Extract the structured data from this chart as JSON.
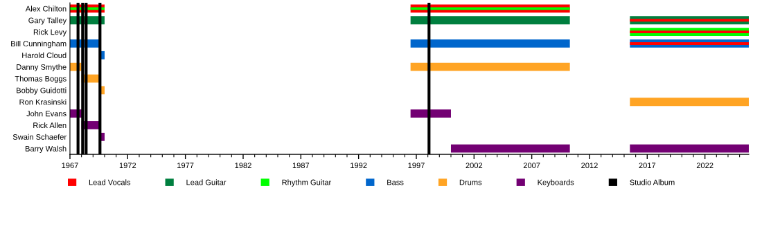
{
  "chart_data": {
    "type": "bar",
    "orientation": "horizontal",
    "legend": "bottom",
    "grid": false,
    "categories": [
      "Alex Chilton",
      "Gary Talley",
      "Rick Levy",
      "Bill Cunningham",
      "Harold Cloud",
      "Danny Smythe",
      "Thomas Boggs",
      "Bobby Guidotti",
      "Ron Krasinski",
      "John Evans",
      "Rick Allen",
      "Swain Schaefer",
      "Barry Walsh"
    ],
    "xlim": [
      1967,
      2025.8
    ],
    "xticks": [
      1967,
      {
        "value": 1968,
        "label": null
      },
      {
        "value": 1969,
        "label": null
      },
      {
        "value": 1970,
        "label": null
      },
      {
        "value": 1971,
        "label": null
      },
      1972,
      {
        "value": 1973,
        "label": null
      },
      {
        "value": 1974,
        "label": null
      },
      {
        "value": 1975,
        "label": null
      },
      {
        "value": 1976,
        "label": null
      },
      1977,
      {
        "value": 1978,
        "label": null
      },
      {
        "value": 1979,
        "label": null
      },
      {
        "value": 1980,
        "label": null
      },
      {
        "value": 1981,
        "label": null
      },
      1982,
      {
        "value": 1983,
        "label": null
      },
      {
        "value": 1984,
        "label": null
      },
      {
        "value": 1985,
        "label": null
      },
      {
        "value": 1986,
        "label": null
      },
      1987,
      {
        "value": 1988,
        "label": null
      },
      {
        "value": 1989,
        "label": null
      },
      {
        "value": 1990,
        "label": null
      },
      {
        "value": 1991,
        "label": null
      },
      1992,
      {
        "value": 1993,
        "label": null
      },
      {
        "value": 1994,
        "label": null
      },
      {
        "value": 1995,
        "label": null
      },
      {
        "value": 1996,
        "label": null
      },
      1997,
      {
        "value": 1998,
        "label": null
      },
      {
        "value": 1999,
        "label": null
      },
      {
        "value": 2000,
        "label": null
      },
      {
        "value": 2001,
        "label": null
      },
      2002,
      {
        "value": 2003,
        "label": null
      },
      {
        "value": 2004,
        "label": null
      },
      {
        "value": 2005,
        "label": null
      },
      {
        "value": 2006,
        "label": null
      },
      2007,
      {
        "value": 2008,
        "label": null
      },
      {
        "value": 2009,
        "label": null
      },
      {
        "value": 2010,
        "label": null
      },
      {
        "value": 2011,
        "label": null
      },
      2012,
      {
        "value": 2013,
        "label": null
      },
      {
        "value": 2014,
        "label": null
      },
      {
        "value": 2015,
        "label": null
      },
      {
        "value": 2016,
        "label": null
      },
      2017,
      {
        "value": 2018,
        "label": null
      },
      {
        "value": 2019,
        "label": null
      },
      {
        "value": 2020,
        "label": null
      },
      {
        "value": 2021,
        "label": null
      },
      2022,
      {
        "value": 2023,
        "label": null
      },
      {
        "value": 2024,
        "label": null
      },
      {
        "value": 2025,
        "label": null
      }
    ],
    "series": [
      {
        "name": "Lead Vocals",
        "color": "#ff0000",
        "base": [
          1967,
          null,
          null,
          null,
          null,
          null,
          null,
          null,
          null,
          null,
          null,
          null,
          null
        ],
        "values": [
          3.0,
          null,
          null,
          null,
          null,
          null,
          null,
          null,
          null,
          null,
          null,
          null,
          null
        ]
      },
      {
        "color": "#ff0000",
        "base": [
          1996.5,
          null,
          null,
          null,
          null,
          null,
          null,
          null,
          null,
          null,
          null,
          null,
          null
        ],
        "values": [
          13.8,
          null,
          null,
          null,
          null,
          null,
          null,
          null,
          null,
          null,
          null,
          null,
          null
        ]
      },
      {
        "name": "Lead Guitar",
        "color": "#007f3f",
        "base": [
          null,
          1967,
          null,
          null,
          null,
          null,
          null,
          null,
          null,
          null,
          null,
          null,
          null
        ],
        "values": [
          null,
          3.0,
          null,
          null,
          null,
          null,
          null,
          null,
          null,
          null,
          null,
          null,
          null
        ]
      },
      {
        "color": "#007f3f",
        "base": [
          null,
          1996.5,
          null,
          null,
          null,
          null,
          null,
          null,
          null,
          null,
          null,
          null,
          null
        ],
        "values": [
          null,
          13.8,
          null,
          null,
          null,
          null,
          null,
          null,
          null,
          null,
          null,
          null,
          null
        ]
      },
      {
        "color": "#007f3f",
        "base": [
          null,
          2015.5,
          null,
          null,
          null,
          null,
          null,
          null,
          null,
          null,
          null,
          null,
          null
        ],
        "values": [
          null,
          10.3,
          null,
          null,
          null,
          null,
          null,
          null,
          null,
          null,
          null,
          null,
          null
        ]
      },
      {
        "name": "Rhythm Guitar",
        "color": "#00ff00",
        "base": [
          1967,
          null,
          2015.5,
          null,
          null,
          null,
          null,
          null,
          null,
          null,
          null,
          null,
          null
        ],
        "values": [
          3.0,
          null,
          10.3,
          null,
          null,
          null,
          null,
          null,
          null,
          null,
          null,
          null,
          null
        ]
      },
      {
        "color": "#00ff00",
        "base": [
          1996.5,
          null,
          null,
          null,
          null,
          null,
          null,
          null,
          null,
          null,
          null,
          null,
          null
        ],
        "values": [
          13.8,
          null,
          null,
          null,
          null,
          null,
          null,
          null,
          null,
          null,
          null,
          null,
          null
        ]
      },
      {
        "name": "Bass",
        "color": "#0066cc",
        "base": [
          null,
          null,
          null,
          1967,
          1969.6,
          null,
          null,
          null,
          null,
          null,
          null,
          null,
          null
        ],
        "values": [
          null,
          null,
          null,
          2.6,
          0.4,
          null,
          null,
          null,
          null,
          null,
          null,
          null,
          null
        ]
      },
      {
        "color": "#0066cc",
        "base": [
          null,
          null,
          null,
          1996.5,
          null,
          null,
          null,
          null,
          null,
          null,
          null,
          null,
          null
        ],
        "values": [
          null,
          null,
          null,
          13.8,
          null,
          null,
          null,
          null,
          null,
          null,
          null,
          null,
          null
        ]
      },
      {
        "color": "#0066cc",
        "base": [
          null,
          null,
          null,
          2015.5,
          null,
          null,
          null,
          null,
          null,
          null,
          null,
          null,
          null
        ],
        "values": [
          null,
          null,
          null,
          10.3,
          null,
          null,
          null,
          null,
          null,
          null,
          null,
          null,
          null
        ]
      },
      {
        "name": "Drums",
        "color": "#ffa424",
        "base": [
          null,
          null,
          null,
          null,
          null,
          1967,
          1968.0,
          1969.6,
          2015.5,
          null,
          null,
          null,
          null
        ],
        "values": [
          null,
          null,
          null,
          null,
          null,
          1.0,
          1.6,
          0.4,
          10.3,
          null,
          null,
          null,
          null
        ]
      },
      {
        "color": "#ffa424",
        "base": [
          null,
          null,
          null,
          null,
          null,
          1996.5,
          null,
          null,
          null,
          null,
          null,
          null,
          null
        ],
        "values": [
          null,
          null,
          null,
          null,
          null,
          13.8,
          null,
          null,
          null,
          null,
          null,
          null,
          null
        ]
      },
      {
        "name": "Keyboards",
        "color": "#730073",
        "base": [
          null,
          null,
          null,
          null,
          null,
          null,
          null,
          null,
          null,
          1967,
          1968.0,
          1969.6,
          2000.0
        ],
        "values": [
          null,
          null,
          null,
          null,
          null,
          null,
          null,
          null,
          null,
          1.1,
          1.6,
          0.4,
          10.3
        ]
      },
      {
        "color": "#730073",
        "base": [
          null,
          null,
          null,
          null,
          null,
          null,
          null,
          null,
          null,
          1996.5,
          null,
          null,
          2015.5
        ],
        "values": [
          null,
          null,
          null,
          null,
          null,
          null,
          null,
          null,
          null,
          3.5,
          null,
          null,
          10.3
        ]
      },
      {
        "color": "#ff0000",
        "base": [
          null,
          2015.5,
          2015.5,
          2015.5,
          null,
          null,
          null,
          null,
          null,
          null,
          null,
          null,
          null
        ],
        "values": [
          null,
          10.3,
          10.3,
          10.3,
          null,
          null,
          null,
          null,
          null,
          null,
          null,
          null,
          null
        ]
      }
    ],
    "ref_lines": [
      {
        "axis": "x",
        "value": 1967.7,
        "label": "Studio Album",
        "color": "#000000"
      },
      {
        "axis": "x",
        "value": 1968.1,
        "color": "#000000"
      },
      {
        "axis": "x",
        "value": 1968.4,
        "color": "#000000"
      },
      {
        "axis": "x",
        "value": 1969.6,
        "color": "#000000"
      },
      {
        "axis": "x",
        "value": 1998.1,
        "color": "#000000"
      }
    ]
  }
}
